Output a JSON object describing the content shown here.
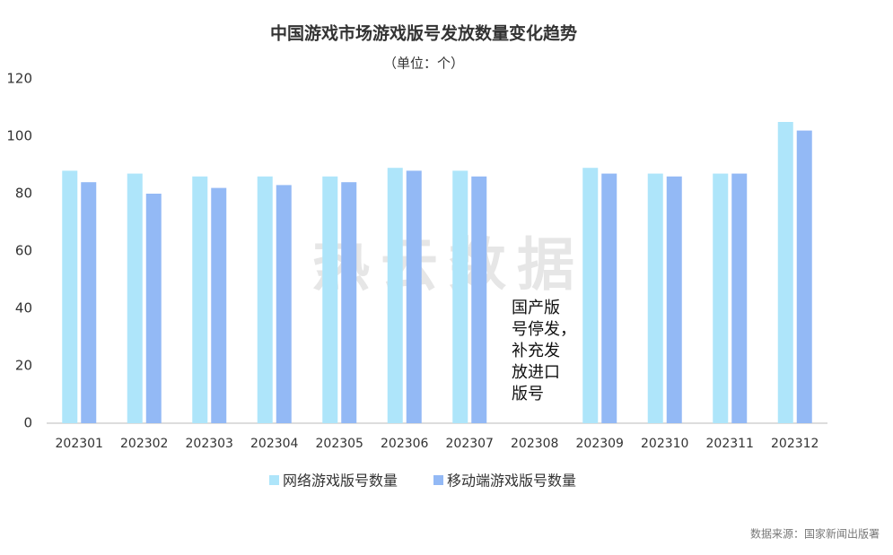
{
  "chart_data": {
    "type": "bar",
    "title": "中国游戏市场游戏版号发放数量变化趋势",
    "subtitle": "（单位：个）",
    "categories": [
      "202301",
      "202302",
      "202303",
      "202304",
      "202305",
      "202306",
      "202307",
      "202308",
      "202309",
      "202310",
      "202311",
      "202312"
    ],
    "series": [
      {
        "name": "网络游戏版号数量",
        "color": "#aee5fa",
        "values": [
          88,
          87,
          86,
          86,
          86,
          89,
          88,
          null,
          89,
          87,
          87,
          105
        ]
      },
      {
        "name": "移动端游戏版号数量",
        "color": "#93b9f5",
        "values": [
          84,
          80,
          82,
          83,
          84,
          88,
          86,
          null,
          87,
          86,
          87,
          102
        ]
      }
    ],
    "ylim": [
      0,
      120
    ],
    "yticks": [
      0,
      20,
      40,
      60,
      80,
      100,
      120
    ],
    "grid": false,
    "annotation": [
      "国产版",
      "号停发，",
      "补充发",
      "放进口",
      "版号"
    ],
    "watermark": "热云数据",
    "source": "数据来源：国家新闻出版署"
  }
}
